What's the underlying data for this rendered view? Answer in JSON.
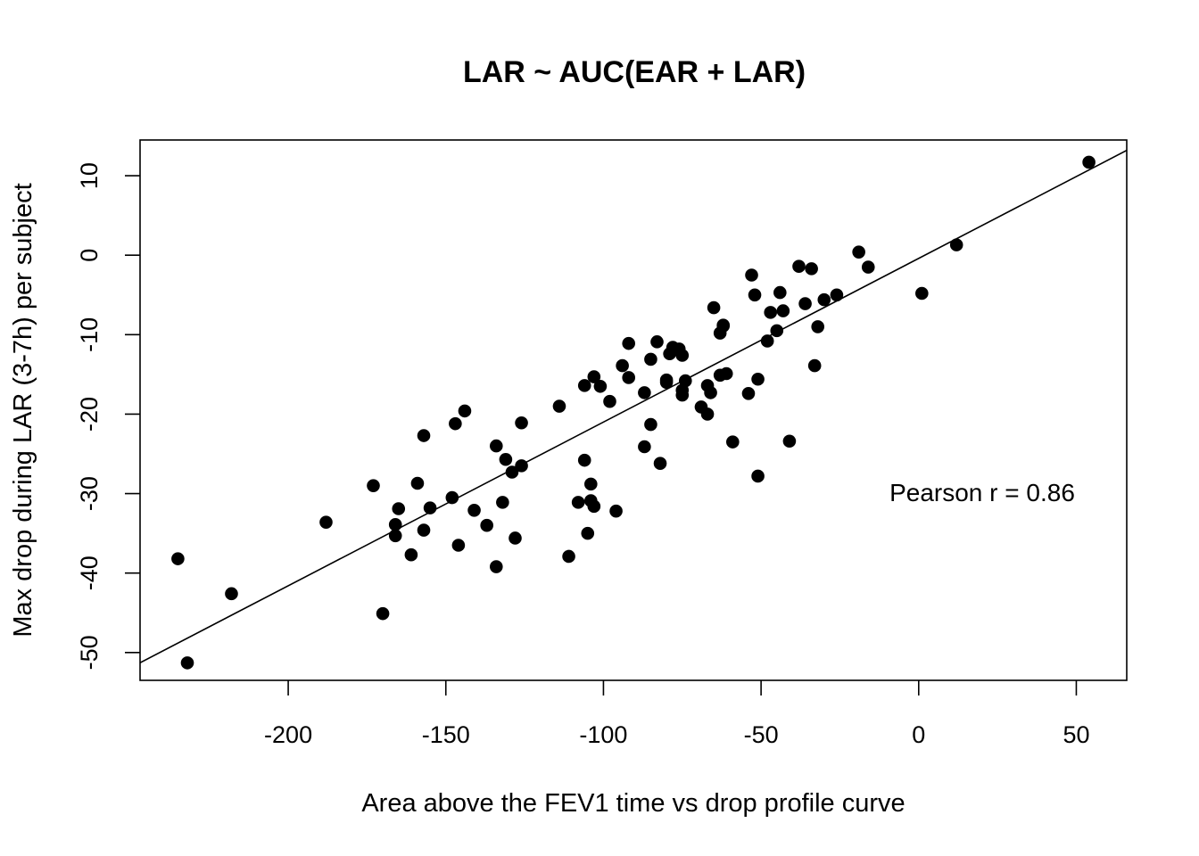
{
  "chart_data": {
    "type": "scatter",
    "title": "LAR ~ AUC(EAR + LAR)",
    "xlabel": "Area above the FEV1 time vs drop profile curve",
    "ylabel": "Max drop during LAR (3-7h) per subject",
    "xlim": [
      -247,
      66
    ],
    "ylim": [
      -53.5,
      14.5
    ],
    "x_ticks": [
      -200,
      -150,
      -100,
      -50,
      0,
      50
    ],
    "y_ticks": [
      -50,
      -40,
      -30,
      -20,
      -10,
      0,
      10
    ],
    "x_tick_labels": [
      "-200",
      "-150",
      "-100",
      "-50",
      "0",
      "50"
    ],
    "y_tick_labels": [
      "-50",
      "-40",
      "-30",
      "-20",
      "-10",
      "0",
      "10"
    ],
    "annotation": "Pearson r = 0.86",
    "grid": false,
    "legend": "none",
    "fit_line": {
      "slope": 0.206,
      "intercept": -0.4
    },
    "points": [
      [
        -235,
        -38.2
      ],
      [
        -232,
        -51.3
      ],
      [
        -218,
        -42.6
      ],
      [
        -188,
        -33.6
      ],
      [
        -173,
        -29.0
      ],
      [
        -170,
        -45.1
      ],
      [
        -166,
        -33.9
      ],
      [
        -166,
        -35.3
      ],
      [
        -165,
        -31.9
      ],
      [
        -161,
        -37.7
      ],
      [
        -159,
        -28.7
      ],
      [
        -157,
        -22.7
      ],
      [
        -157,
        -34.6
      ],
      [
        -155,
        -31.8
      ],
      [
        -148,
        -30.5
      ],
      [
        -147,
        -21.2
      ],
      [
        -146,
        -36.5
      ],
      [
        -144,
        -19.6
      ],
      [
        -141,
        -32.1
      ],
      [
        -137,
        -34.0
      ],
      [
        -134,
        -24.0
      ],
      [
        -134,
        -39.2
      ],
      [
        -132,
        -31.1
      ],
      [
        -131,
        -25.7
      ],
      [
        -129,
        -27.3
      ],
      [
        -128,
        -35.6
      ],
      [
        -126,
        -21.1
      ],
      [
        -126,
        -26.5
      ],
      [
        -114,
        -19.0
      ],
      [
        -111,
        -37.9
      ],
      [
        -108,
        -31.1
      ],
      [
        -106,
        -25.8
      ],
      [
        -106,
        -16.4
      ],
      [
        -105,
        -35.0
      ],
      [
        -104,
        -30.9
      ],
      [
        -104,
        -28.8
      ],
      [
        -103,
        -31.6
      ],
      [
        -103,
        -15.3
      ],
      [
        -101,
        -16.5
      ],
      [
        -98,
        -18.4
      ],
      [
        -96,
        -32.2
      ],
      [
        -94,
        -13.9
      ],
      [
        -92,
        -15.4
      ],
      [
        -92,
        -11.1
      ],
      [
        -87,
        -17.3
      ],
      [
        -87,
        -24.1
      ],
      [
        -85,
        -21.3
      ],
      [
        -85,
        -13.1
      ],
      [
        -83,
        -10.9
      ],
      [
        -82,
        -26.2
      ],
      [
        -80,
        -16.0
      ],
      [
        -80,
        -15.7
      ],
      [
        -79,
        -12.4
      ],
      [
        -78,
        -11.6
      ],
      [
        -76,
        -11.8
      ],
      [
        -75,
        -12.6
      ],
      [
        -75,
        -17.6
      ],
      [
        -75,
        -17.0
      ],
      [
        -74,
        -15.8
      ],
      [
        -69,
        -19.1
      ],
      [
        -67,
        -20.0
      ],
      [
        -67,
        -16.4
      ],
      [
        -66,
        -17.3
      ],
      [
        -65,
        -6.6
      ],
      [
        -63,
        -15.1
      ],
      [
        -63,
        -9.8
      ],
      [
        -62,
        -8.8
      ],
      [
        -62,
        -8.9
      ],
      [
        -61,
        -14.9
      ],
      [
        -59,
        -23.5
      ],
      [
        -54,
        -17.4
      ],
      [
        -53,
        -2.5
      ],
      [
        -52,
        -5.0
      ],
      [
        -51,
        -15.6
      ],
      [
        -51,
        -27.8
      ],
      [
        -48,
        -10.8
      ],
      [
        -47,
        -7.2
      ],
      [
        -45,
        -9.5
      ],
      [
        -44,
        -4.7
      ],
      [
        -43,
        -7.0
      ],
      [
        -41,
        -23.4
      ],
      [
        -38,
        -1.4
      ],
      [
        -36,
        -6.1
      ],
      [
        -34,
        -1.7
      ],
      [
        -33,
        -13.9
      ],
      [
        -32,
        -9.0
      ],
      [
        -30,
        -5.6
      ],
      [
        -26,
        -5.0
      ],
      [
        -19,
        0.4
      ],
      [
        -16,
        -1.5
      ],
      [
        1,
        -4.8
      ],
      [
        12,
        1.3
      ],
      [
        54,
        11.7
      ]
    ]
  }
}
